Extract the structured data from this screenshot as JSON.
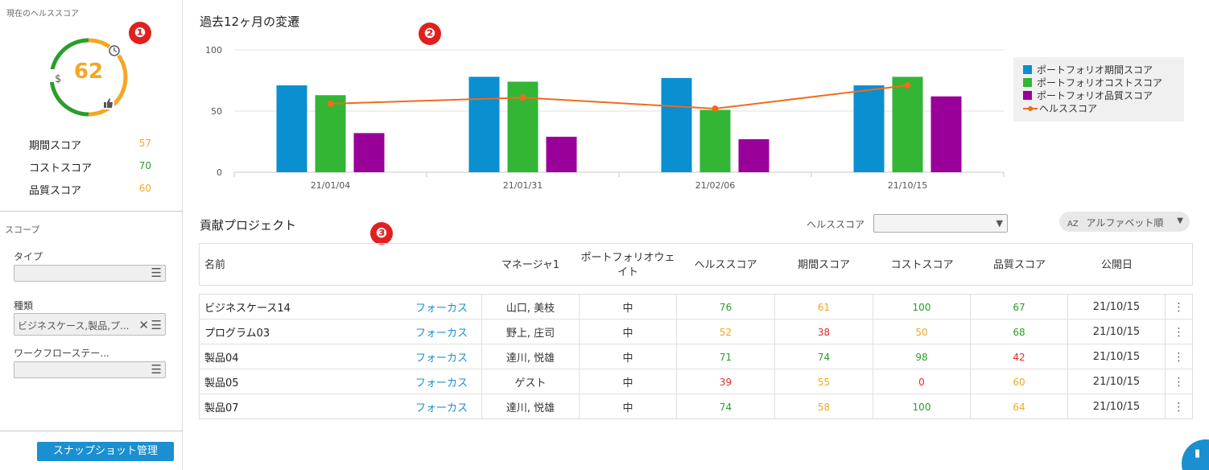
{
  "sidebar": {
    "current_health_title": "現在のヘルススコア",
    "health_score": "62",
    "scores": [
      {
        "label": "期間スコア",
        "value": "57",
        "color": "#f5a623"
      },
      {
        "label": "コストスコア",
        "value": "70",
        "color": "#2a9d2a"
      },
      {
        "label": "品質スコア",
        "value": "60",
        "color": "#f5a623"
      }
    ],
    "scope_title": "スコープ",
    "type_label": "タイプ",
    "type_value": "",
    "kind_label": "種類",
    "kind_value": "ビジネスケース,製品,プ...",
    "workflow_label": "ワークフローステー...",
    "workflow_value": "",
    "snapshot_button": "スナップショット管理"
  },
  "badges": [
    "❶",
    "❷",
    "❸"
  ],
  "chart_data": {
    "type": "bar",
    "title": "過去12ヶ月の変遷",
    "categories": [
      "21/01/04",
      "21/01/31",
      "21/02/06",
      "21/10/15"
    ],
    "ylim": [
      0,
      100
    ],
    "yticks": [
      "0",
      "50",
      "100"
    ],
    "series": [
      {
        "name": "ポートフォリオ期間スコア",
        "color": "#0a8fd0",
        "values": [
          71,
          78,
          77,
          71
        ]
      },
      {
        "name": "ポートフォリオコストスコア",
        "color": "#33b536",
        "values": [
          63,
          74,
          51,
          78
        ]
      },
      {
        "name": "ポートフォリオ品質スコア",
        "color": "#990099",
        "values": [
          32,
          29,
          27,
          62
        ]
      }
    ],
    "line_series": {
      "name": "ヘルススコア",
      "color": "#f26b1d",
      "values": [
        56,
        61,
        52,
        71
      ]
    },
    "legend_position": "right"
  },
  "projects": {
    "title": "貢献プロジェクト",
    "health_filter_label": "ヘルススコア",
    "health_filter_value": "",
    "sort_label": "アルファベット順",
    "sort_icon_text": "AZ",
    "columns": [
      "名前",
      "マネージャ1",
      "ポートフォリオウェイト",
      "ヘルススコア",
      "期間スコア",
      "コストスコア",
      "品質スコア",
      "公開日"
    ],
    "rows": [
      {
        "name": "ビジネスケース14",
        "focus": "フォーカス",
        "manager": "山口, 美枝",
        "weight": "中",
        "health": "76",
        "health_c": "c-green",
        "period": "61",
        "period_c": "c-yellow",
        "cost": "100",
        "cost_c": "c-green",
        "quality": "67",
        "quality_c": "c-green",
        "date": "21/10/15"
      },
      {
        "name": "プログラム03",
        "focus": "フォーカス",
        "manager": "野上, 庄司",
        "weight": "中",
        "health": "52",
        "health_c": "c-yellow",
        "period": "38",
        "period_c": "c-red",
        "cost": "50",
        "cost_c": "c-yellow",
        "quality": "68",
        "quality_c": "c-green",
        "date": "21/10/15"
      },
      {
        "name": "製品04",
        "focus": "フォーカス",
        "manager": "達川, 悦雄",
        "weight": "中",
        "health": "71",
        "health_c": "c-green",
        "period": "74",
        "period_c": "c-green",
        "cost": "98",
        "cost_c": "c-green",
        "quality": "42",
        "quality_c": "c-red",
        "date": "21/10/15"
      },
      {
        "name": "製品05",
        "focus": "フォーカス",
        "manager": "ゲスト",
        "weight": "中",
        "health": "39",
        "health_c": "c-red",
        "period": "55",
        "period_c": "c-yellow",
        "cost": "0",
        "cost_c": "c-red",
        "quality": "60",
        "quality_c": "c-yellow",
        "date": "21/10/15"
      },
      {
        "name": "製品07",
        "focus": "フォーカス",
        "manager": "達川, 悦雄",
        "weight": "中",
        "health": "74",
        "health_c": "c-green",
        "period": "58",
        "period_c": "c-yellow",
        "cost": "100",
        "cost_c": "c-green",
        "quality": "64",
        "quality_c": "c-yellow",
        "date": "21/10/15"
      }
    ]
  },
  "colors": {
    "accent": "#1a8fd1",
    "green": "#2a9d2a",
    "yellow": "#f5a623",
    "red": "#e02b2b"
  }
}
